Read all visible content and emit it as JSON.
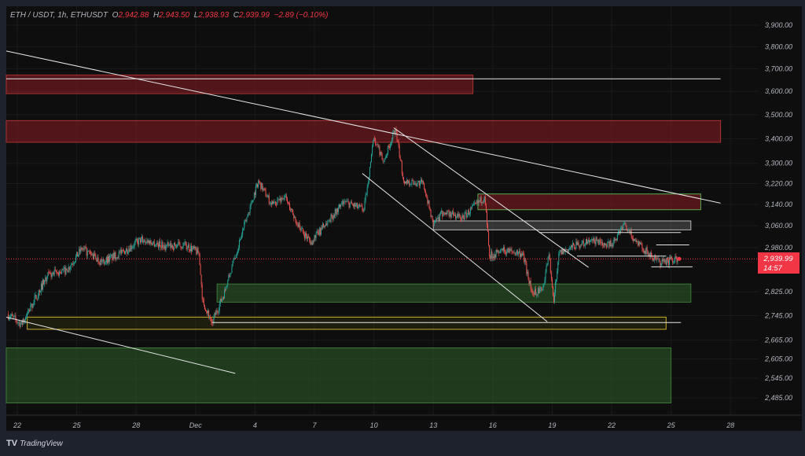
{
  "header": {
    "symbol": "ETH / USDT, 1h, ETHUSDT",
    "open_label": "O",
    "open": "2,942.88",
    "high_label": "H",
    "high": "2,943.50",
    "low_label": "L",
    "low": "2,938.93",
    "close_label": "C",
    "close": "2,939.99",
    "change": "−2.89 (−0.10%)"
  },
  "colors": {
    "background": "#0e0e0e",
    "up": "#26a69a",
    "down": "#ef5350",
    "last_price": "#f23645",
    "supply_zone": "#8b1e24",
    "demand_zone": "#2e5e2a",
    "axis_text": "#b2b5be"
  },
  "last_price": {
    "value": "2,939.99",
    "countdown": "14:57"
  },
  "branding": {
    "name": "TradingView"
  },
  "chart_data": {
    "type": "candlestick",
    "interval": "1h",
    "y_scale": "log",
    "ylim": [
      2440,
      3980
    ],
    "y_ticks": [
      "3,900.00",
      "3,800.00",
      "3,700.00",
      "3,600.00",
      "3,500.00",
      "3,400.00",
      "3,300.00",
      "3,220.00",
      "3,140.00",
      "3,060.00",
      "2,980.00",
      "2,825.00",
      "2,745.00",
      "2,665.00",
      "2,605.00",
      "2,545.00",
      "2,485.00"
    ],
    "x_ticks": [
      {
        "label": "22",
        "date": "11-22"
      },
      {
        "label": "25",
        "date": "11-25"
      },
      {
        "label": "28",
        "date": "11-28"
      },
      {
        "label": "Dec",
        "date": "12-01"
      },
      {
        "label": "4",
        "date": "12-04"
      },
      {
        "label": "7",
        "date": "12-07"
      },
      {
        "label": "10",
        "date": "12-10"
      },
      {
        "label": "13",
        "date": "12-13"
      },
      {
        "label": "16",
        "date": "12-16"
      },
      {
        "label": "19",
        "date": "12-19"
      },
      {
        "label": "22",
        "date": "12-22"
      },
      {
        "label": "25",
        "date": "12-25"
      },
      {
        "label": "28",
        "date": "12-28"
      }
    ],
    "price_path": [
      [
        "11-21 12",
        2750
      ],
      [
        "11-22 06",
        2715
      ],
      [
        "11-23 12",
        2880
      ],
      [
        "11-24 12",
        2900
      ],
      [
        "11-25 06",
        2975
      ],
      [
        "11-26 06",
        2930
      ],
      [
        "11-27 06",
        2960
      ],
      [
        "11-28 06",
        3010
      ],
      [
        "11-29 12",
        2985
      ],
      [
        "11-30 12",
        2990
      ],
      [
        "12-01 04",
        2960
      ],
      [
        "12-01 08",
        2800
      ],
      [
        "12-01 20",
        2722
      ],
      [
        "12-02 12",
        2830
      ],
      [
        "12-03 06",
        3010
      ],
      [
        "12-04 04",
        3230
      ],
      [
        "12-04 20",
        3140
      ],
      [
        "12-05 12",
        3170
      ],
      [
        "12-06 06",
        3050
      ],
      [
        "12-06 20",
        3000
      ],
      [
        "12-07 12",
        3060
      ],
      [
        "12-08 12",
        3150
      ],
      [
        "12-09 12",
        3120
      ],
      [
        "12-10 00",
        3400
      ],
      [
        "12-10 12",
        3310
      ],
      [
        "12-11 02",
        3440
      ],
      [
        "12-11 12",
        3230
      ],
      [
        "12-12 12",
        3220
      ],
      [
        "12-13 00",
        3060
      ],
      [
        "12-13 12",
        3110
      ],
      [
        "12-14 12",
        3090
      ],
      [
        "12-15 14",
        3170
      ],
      [
        "12-15 20",
        2950
      ],
      [
        "12-16 12",
        2970
      ],
      [
        "12-17 12",
        2960
      ],
      [
        "12-18 00",
        2820
      ],
      [
        "12-18 12",
        2830
      ],
      [
        "12-18 20",
        2955
      ],
      [
        "12-19 02",
        2790
      ],
      [
        "12-19 08",
        2960
      ],
      [
        "12-20 06",
        2990
      ],
      [
        "12-21 06",
        3005
      ],
      [
        "12-22 00",
        2990
      ],
      [
        "12-22 14",
        3065
      ],
      [
        "12-23 06",
        3000
      ],
      [
        "12-24 00",
        2950
      ],
      [
        "12-24 12",
        2925
      ],
      [
        "12-25 08",
        2939.99
      ]
    ],
    "zones": [
      {
        "kind": "supply",
        "from": "11-21 00",
        "to": "12-15 00",
        "low": 3590,
        "high": 3672
      },
      {
        "kind": "supply",
        "from": "11-21 00",
        "to": "12-27 12",
        "low": 3385,
        "high": 3475
      },
      {
        "kind": "supply",
        "from": "12-15 06",
        "to": "12-26 12",
        "low": 3120,
        "high": 3180,
        "border": "green"
      },
      {
        "kind": "neutral",
        "from": "12-13 00",
        "to": "12-26 00",
        "low": 3045,
        "high": 3078
      },
      {
        "kind": "demand",
        "from": "12-02 02",
        "to": "12-26 00",
        "low": 2790,
        "high": 2852
      },
      {
        "kind": "outline",
        "from": "11-22 12",
        "to": "12-24 18",
        "low": 2700,
        "high": 2740
      },
      {
        "kind": "demand",
        "from": "11-21 00",
        "to": "12-25 00",
        "low": 2470,
        "high": 2640
      }
    ],
    "lines": [
      {
        "from": [
          "11-21 00",
          3655
        ],
        "to": [
          "12-27 12",
          3655
        ]
      },
      {
        "from": [
          "11-21 00",
          3780
        ],
        "to": [
          "12-27 12",
          3145
        ]
      },
      {
        "from": [
          "11-21 00",
          2740
        ],
        "to": [
          "12-03 00",
          2560
        ]
      },
      {
        "from": [
          "12-11 00",
          3445
        ],
        "to": [
          "12-20 20",
          2910
        ]
      },
      {
        "from": [
          "12-09 10",
          3260
        ],
        "to": [
          "12-18 18",
          2725
        ]
      },
      {
        "from": [
          "12-01 20",
          2722
        ],
        "to": [
          "12-25 12",
          2722
        ]
      },
      {
        "from": [
          "12-18 08",
          3035
        ],
        "to": [
          "12-25 12",
          3035
        ]
      },
      {
        "from": [
          "12-24 06",
          2990
        ],
        "to": [
          "12-25 22",
          2990
        ]
      },
      {
        "from": [
          "12-20 06",
          2950
        ],
        "to": [
          "12-24 18",
          2950
        ]
      },
      {
        "from": [
          "12-24 00",
          2912
        ],
        "to": [
          "12-26 02",
          2912
        ]
      }
    ]
  }
}
